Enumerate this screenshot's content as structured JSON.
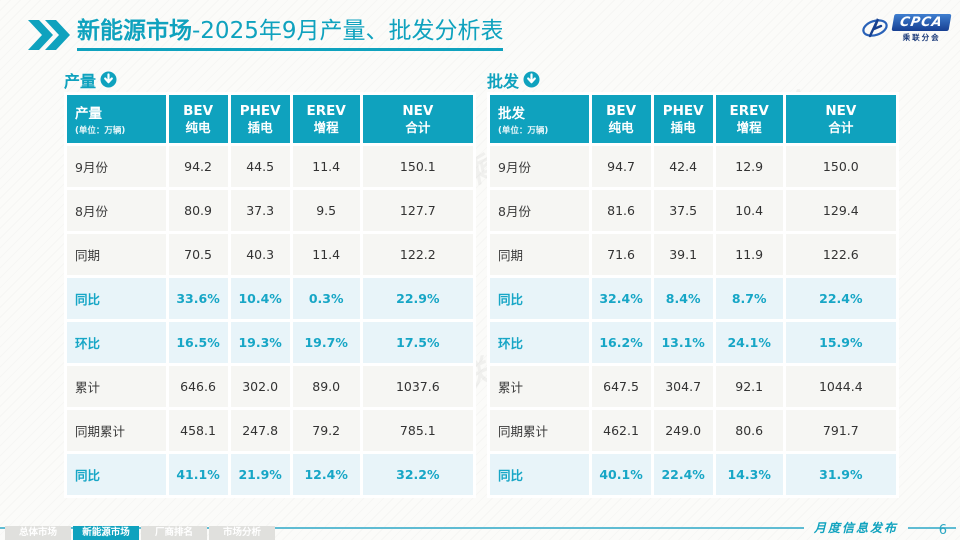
{
  "title": {
    "highlight": "新能源市场",
    "rest": "-2025年9月产量、批发分析表"
  },
  "logo": {
    "name": "CPCA",
    "caption": "乘联分会"
  },
  "watermark": "CPCA 乘联分会",
  "colors": {
    "accent": "#0fa2be",
    "highlight_text": "#17a6c6",
    "highlight_row_bg": "#e8f4f9",
    "row_bg": "#f6f6f3",
    "footer_line": "#5fbcd3",
    "inactive_tab": "#e0e0dd"
  },
  "tables": [
    {
      "id": "production",
      "section_label": "产量",
      "corner": {
        "label": "产量",
        "unit": "(单位：万辆)"
      },
      "columns": [
        {
          "line1": "BEV",
          "line2": "纯电"
        },
        {
          "line1": "PHEV",
          "line2": "插电"
        },
        {
          "line1": "EREV",
          "line2": "增程"
        },
        {
          "line1": "NEV",
          "line2": "合计"
        }
      ],
      "rows": [
        {
          "label": "9月份",
          "values": [
            "94.2",
            "44.5",
            "11.4",
            "150.1"
          ],
          "highlight": false
        },
        {
          "label": "8月份",
          "values": [
            "80.9",
            "37.3",
            "9.5",
            "127.7"
          ],
          "highlight": false
        },
        {
          "label": "同期",
          "values": [
            "70.5",
            "40.3",
            "11.4",
            "122.2"
          ],
          "highlight": false
        },
        {
          "label": "同比",
          "values": [
            "33.6%",
            "10.4%",
            "0.3%",
            "22.9%"
          ],
          "highlight": true
        },
        {
          "label": "环比",
          "values": [
            "16.5%",
            "19.3%",
            "19.7%",
            "17.5%"
          ],
          "highlight": true
        },
        {
          "label": "累计",
          "values": [
            "646.6",
            "302.0",
            "89.0",
            "1037.6"
          ],
          "highlight": false
        },
        {
          "label": "同期累计",
          "values": [
            "458.1",
            "247.8",
            "79.2",
            "785.1"
          ],
          "highlight": false
        },
        {
          "label": "同比",
          "values": [
            "41.1%",
            "21.9%",
            "12.4%",
            "32.2%"
          ],
          "highlight": true
        }
      ]
    },
    {
      "id": "wholesale",
      "section_label": "批发",
      "corner": {
        "label": "批发",
        "unit": "(单位：万辆)"
      },
      "columns": [
        {
          "line1": "BEV",
          "line2": "纯电"
        },
        {
          "line1": "PHEV",
          "line2": "插电"
        },
        {
          "line1": "EREV",
          "line2": "增程"
        },
        {
          "line1": "NEV",
          "line2": "合计"
        }
      ],
      "rows": [
        {
          "label": "9月份",
          "values": [
            "94.7",
            "42.4",
            "12.9",
            "150.0"
          ],
          "highlight": false
        },
        {
          "label": "8月份",
          "values": [
            "81.6",
            "37.5",
            "10.4",
            "129.4"
          ],
          "highlight": false
        },
        {
          "label": "同期",
          "values": [
            "71.6",
            "39.1",
            "11.9",
            "122.6"
          ],
          "highlight": false
        },
        {
          "label": "同比",
          "values": [
            "32.4%",
            "8.4%",
            "8.7%",
            "22.4%"
          ],
          "highlight": true
        },
        {
          "label": "环比",
          "values": [
            "16.2%",
            "13.1%",
            "24.1%",
            "15.9%"
          ],
          "highlight": true
        },
        {
          "label": "累计",
          "values": [
            "647.5",
            "304.7",
            "92.1",
            "1044.4"
          ],
          "highlight": false
        },
        {
          "label": "同期累计",
          "values": [
            "462.1",
            "249.0",
            "80.6",
            "791.7"
          ],
          "highlight": false
        },
        {
          "label": "同比",
          "values": [
            "40.1%",
            "22.4%",
            "14.3%",
            "31.9%"
          ],
          "highlight": true
        }
      ]
    }
  ],
  "footer": {
    "tabs": [
      {
        "label": "总体市场",
        "active": false
      },
      {
        "label": "新能源市场",
        "active": true
      },
      {
        "label": "厂商排名",
        "active": false
      },
      {
        "label": "市场分析",
        "active": false
      }
    ],
    "release_label": "月度信息发布",
    "page_number": "6"
  },
  "chart_data": [
    {
      "type": "table",
      "title": "产量 (单位：万辆)",
      "columns": [
        "",
        "BEV 纯电",
        "PHEV 插电",
        "EREV 增程",
        "NEV 合计"
      ],
      "rows": [
        [
          "9月份",
          94.2,
          44.5,
          11.4,
          150.1
        ],
        [
          "8月份",
          80.9,
          37.3,
          9.5,
          127.7
        ],
        [
          "同期",
          70.5,
          40.3,
          11.4,
          122.2
        ],
        [
          "同比",
          "33.6%",
          "10.4%",
          "0.3%",
          "22.9%"
        ],
        [
          "环比",
          "16.5%",
          "19.3%",
          "19.7%",
          "17.5%"
        ],
        [
          "累计",
          646.6,
          302.0,
          89.0,
          1037.6
        ],
        [
          "同期累计",
          458.1,
          247.8,
          79.2,
          785.1
        ],
        [
          "同比",
          "41.1%",
          "21.9%",
          "12.4%",
          "32.2%"
        ]
      ]
    },
    {
      "type": "table",
      "title": "批发 (单位：万辆)",
      "columns": [
        "",
        "BEV 纯电",
        "PHEV 插电",
        "EREV 增程",
        "NEV 合计"
      ],
      "rows": [
        [
          "9月份",
          94.7,
          42.4,
          12.9,
          150.0
        ],
        [
          "8月份",
          81.6,
          37.5,
          10.4,
          129.4
        ],
        [
          "同期",
          71.6,
          39.1,
          11.9,
          122.6
        ],
        [
          "同比",
          "32.4%",
          "8.4%",
          "8.7%",
          "22.4%"
        ],
        [
          "环比",
          "16.2%",
          "13.1%",
          "24.1%",
          "15.9%"
        ],
        [
          "累计",
          647.5,
          304.7,
          92.1,
          1044.4
        ],
        [
          "同期累计",
          462.1,
          249.0,
          80.6,
          791.7
        ],
        [
          "同比",
          "40.1%",
          "22.4%",
          "14.3%",
          "31.9%"
        ]
      ]
    }
  ]
}
